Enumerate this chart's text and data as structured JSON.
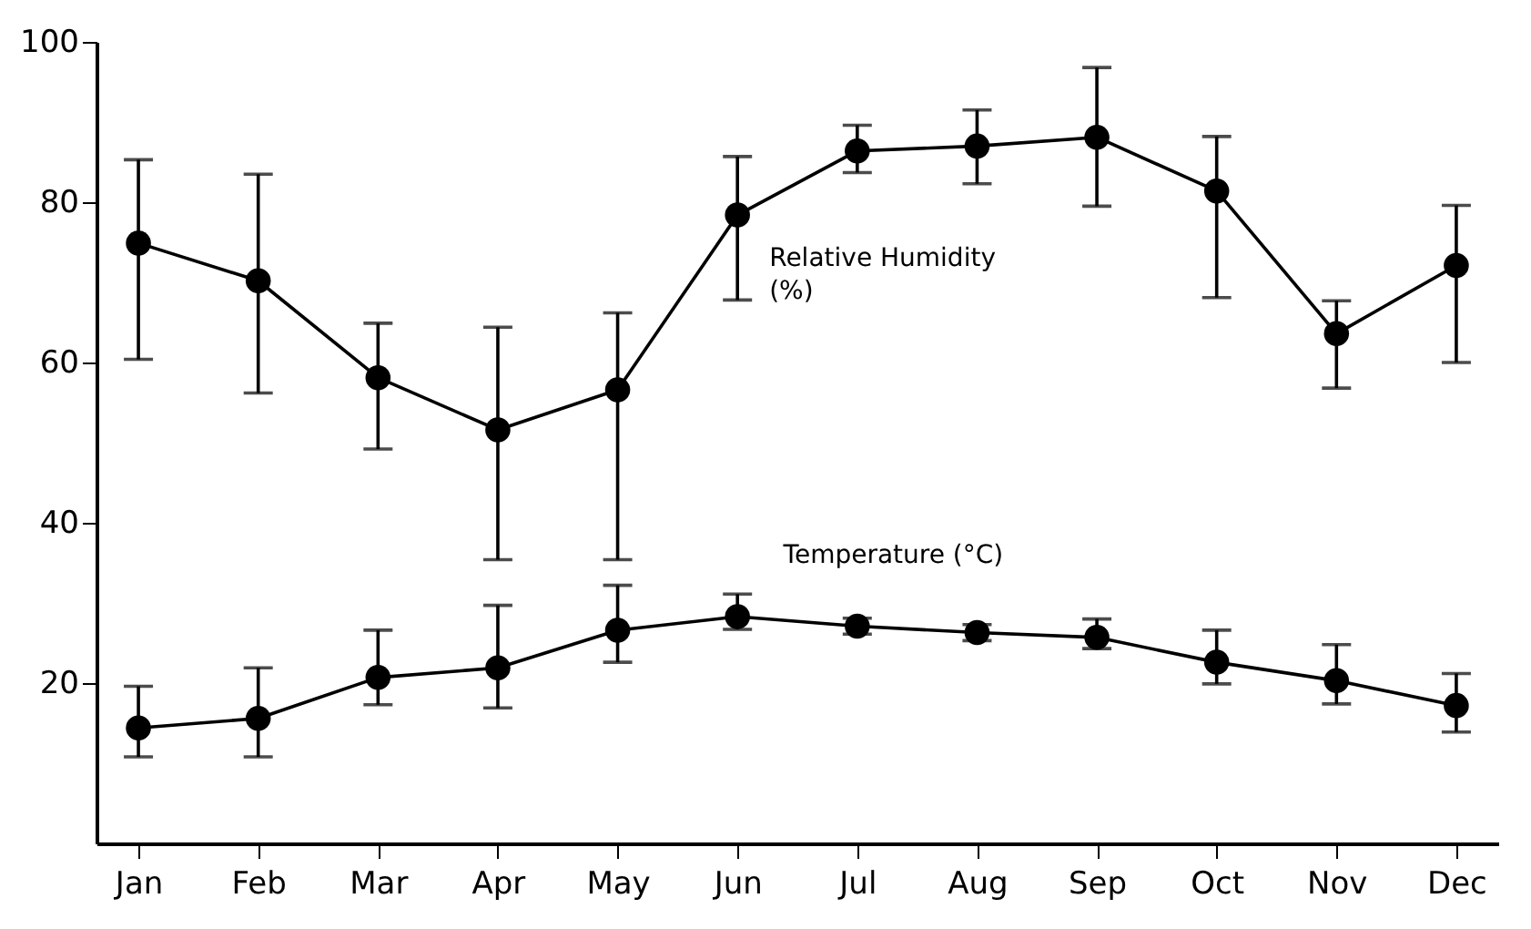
{
  "chart_data": {
    "type": "line",
    "categories": [
      "Jan",
      "Feb",
      "Mar",
      "Apr",
      "May",
      "Jun",
      "Jul",
      "Aug",
      "Sep",
      "Oct",
      "Nov",
      "Dec"
    ],
    "ylim": [
      0,
      100
    ],
    "yticks": [
      20,
      40,
      60,
      80,
      100
    ],
    "marker": "circle",
    "line_style": "solid",
    "series": [
      {
        "color": "#000000",
        "values": [
          74.9,
          70.2,
          58.1,
          51.6,
          56.6,
          78.4,
          86.4,
          87.0,
          88.1,
          81.4,
          63.6,
          72.1
        ],
        "errors": [
          [
            60.4,
            85.3
          ],
          [
            56.2,
            83.5
          ],
          [
            49.2,
            64.9
          ],
          [
            35.4,
            64.4
          ],
          [
            35.4,
            66.2
          ],
          [
            67.8,
            85.7
          ],
          [
            83.7,
            89.6
          ],
          [
            82.3,
            91.5
          ],
          [
            79.5,
            96.8
          ],
          [
            68.1,
            88.2
          ],
          [
            56.8,
            67.7
          ],
          [
            60.0,
            79.6
          ]
        ]
      },
      {
        "color": "#000000",
        "values": [
          14.4,
          15.6,
          20.7,
          21.9,
          26.6,
          28.3,
          27.1,
          26.3,
          25.7,
          22.6,
          20.3,
          17.2
        ],
        "errors": [
          [
            10.8,
            19.6
          ],
          [
            10.8,
            21.9
          ],
          [
            17.3,
            26.6
          ],
          [
            16.9,
            29.7
          ],
          [
            22.6,
            32.2
          ],
          [
            26.7,
            31.1
          ],
          [
            26.1,
            28.1
          ],
          [
            25.3,
            27.3
          ],
          [
            24.3,
            28.0
          ],
          [
            19.9,
            26.6
          ],
          [
            17.4,
            24.8
          ],
          [
            13.9,
            21.2
          ]
        ]
      }
    ],
    "annotations": [
      "Relative Humidity\n(%)",
      "Temperature (°C)"
    ]
  }
}
